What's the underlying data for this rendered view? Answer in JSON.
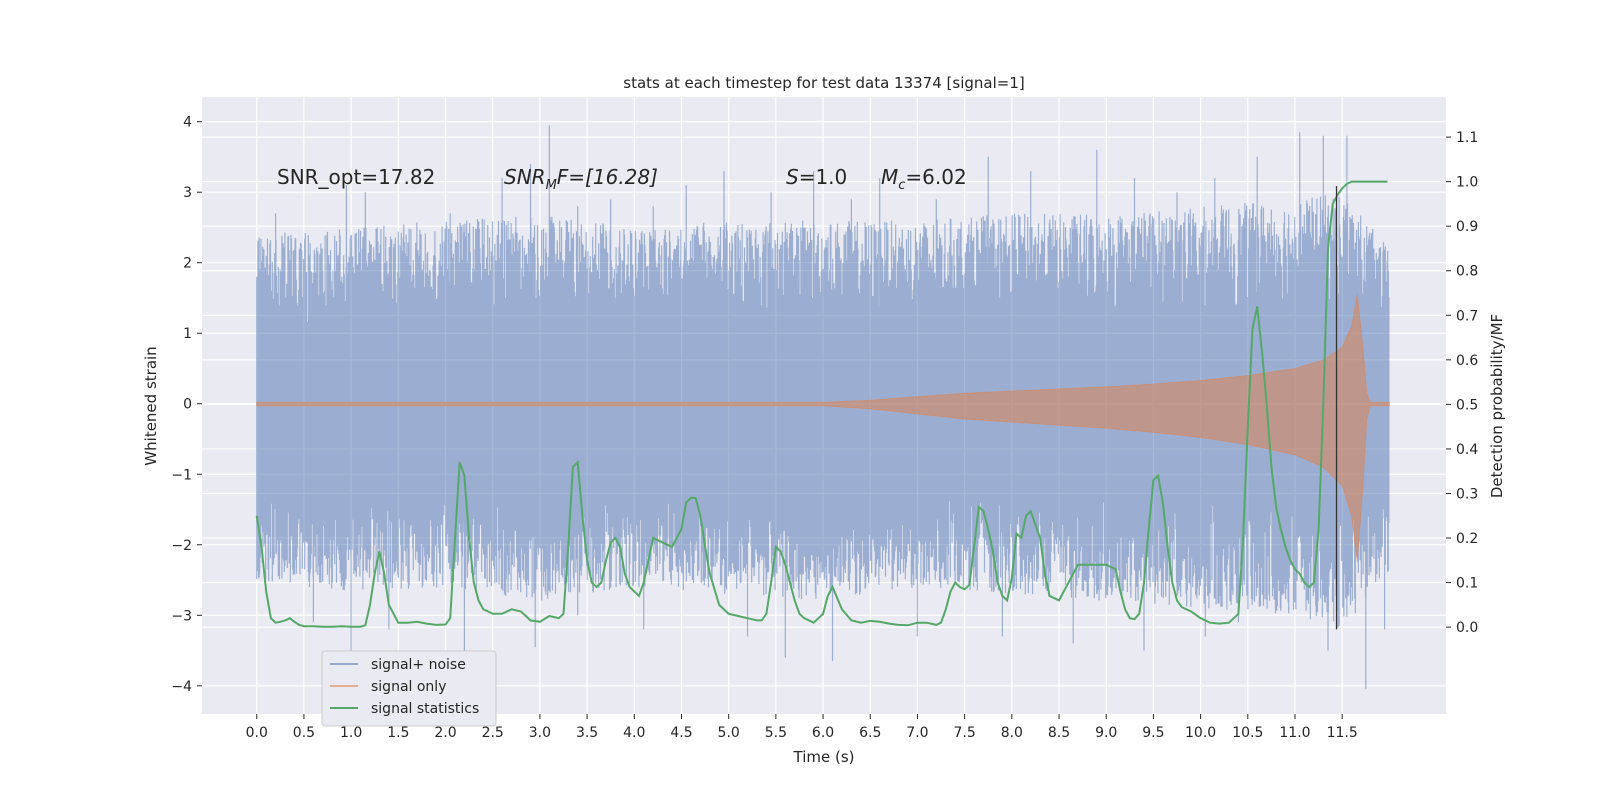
{
  "chart_data": {
    "type": "line",
    "title": "stats at each timestep for test data 13374 [signal=1]",
    "xlabel": "Time (s)",
    "ylabel_left": "Whitened strain",
    "ylabel_right": "Detection probability/MF",
    "x_ticks": [
      "0.0",
      "0.5",
      "1.0",
      "1.5",
      "2.0",
      "2.5",
      "3.0",
      "3.5",
      "4.0",
      "4.5",
      "5.0",
      "5.5",
      "6.0",
      "6.5",
      "7.0",
      "7.5",
      "8.0",
      "8.5",
      "9.0",
      "9.5",
      "10.0",
      "10.5",
      "11.0",
      "11.5"
    ],
    "x_tick_values": [
      0,
      0.5,
      1,
      1.5,
      2,
      2.5,
      3,
      3.5,
      4,
      4.5,
      5,
      5.5,
      6,
      6.5,
      7,
      7.5,
      8,
      8.5,
      9,
      9.5,
      10,
      10.5,
      11,
      11.5
    ],
    "y_left_ticks": [
      "−4",
      "−3",
      "−2",
      "−1",
      "0",
      "1",
      "2",
      "3",
      "4"
    ],
    "y_left_tick_values": [
      -4,
      -3,
      -2,
      -1,
      0,
      1,
      2,
      3,
      4
    ],
    "y_right_ticks": [
      "0.0",
      "0.1",
      "0.2",
      "0.3",
      "0.4",
      "0.5",
      "0.6",
      "0.7",
      "0.8",
      "0.9",
      "1.0",
      "1.1"
    ],
    "y_right_tick_values": [
      0,
      0.1,
      0.2,
      0.3,
      0.4,
      0.5,
      0.6,
      0.7,
      0.8,
      0.9,
      1.0,
      1.1
    ],
    "xlim": [
      -0.58,
      12.6
    ],
    "ylim_left": [
      -4.4,
      4.35
    ],
    "ylim_right": [
      -0.195,
      1.19
    ],
    "grid": true,
    "legend_position": "bottom-left",
    "annotations": {
      "snr_opt": "SNR_opt=17.82",
      "snr_mf_main": "SNR",
      "snr_mf_sub": "M",
      "snr_mf_rest": "F=[16.28]",
      "s_label": "S",
      "s_value": "=1.0",
      "mc_label": "M",
      "mc_sub": "c",
      "mc_value": "=6.02"
    },
    "series": [
      {
        "name": "signal+ noise",
        "color": "#4c72b0",
        "x_range": [
          0,
          12.0
        ],
        "envelope_upper": [
          [
            0,
            2.4
          ],
          [
            1,
            2.5
          ],
          [
            2,
            2.6
          ],
          [
            3,
            2.7
          ],
          [
            4,
            2.5
          ],
          [
            5,
            2.6
          ],
          [
            6,
            2.6
          ],
          [
            7,
            2.6
          ],
          [
            8,
            2.7
          ],
          [
            9,
            2.7
          ],
          [
            10,
            2.8
          ],
          [
            11,
            2.9
          ],
          [
            11.5,
            3.0
          ],
          [
            12,
            2.2
          ]
        ],
        "envelope_lower": [
          [
            0,
            -2.5
          ],
          [
            1,
            -2.7
          ],
          [
            2,
            -2.6
          ],
          [
            3,
            -2.8
          ],
          [
            4,
            -2.6
          ],
          [
            5,
            -2.7
          ],
          [
            6,
            -2.8
          ],
          [
            7,
            -2.6
          ],
          [
            8,
            -2.7
          ],
          [
            9,
            -2.8
          ],
          [
            10,
            -2.9
          ],
          [
            11,
            -3.0
          ],
          [
            11.5,
            -3.2
          ],
          [
            12,
            -2.4
          ]
        ],
        "peaks": [
          [
            0.1,
            2.1
          ],
          [
            0.2,
            2.7
          ],
          [
            0.95,
            3.1
          ],
          [
            1.15,
            3.0
          ],
          [
            2.05,
            2.7
          ],
          [
            2.6,
            3.2
          ],
          [
            2.9,
            3.4
          ],
          [
            3.1,
            3.95
          ],
          [
            3.4,
            2.8
          ],
          [
            3.75,
            2.9
          ],
          [
            4.2,
            2.8
          ],
          [
            4.55,
            3.1
          ],
          [
            4.95,
            3.3
          ],
          [
            5.45,
            3.0
          ],
          [
            5.9,
            3.3
          ],
          [
            6.3,
            2.9
          ],
          [
            6.6,
            3.2
          ],
          [
            7.2,
            2.9
          ],
          [
            7.75,
            3.5
          ],
          [
            8.2,
            3.3
          ],
          [
            8.9,
            3.6
          ],
          [
            9.3,
            3.2
          ],
          [
            9.75,
            3.0
          ],
          [
            10.15,
            3.2
          ],
          [
            10.6,
            3.5
          ],
          [
            11.05,
            3.85
          ],
          [
            11.3,
            3.8
          ],
          [
            11.55,
            3.8
          ],
          [
            0.6,
            -3.1
          ],
          [
            1.0,
            -3.7
          ],
          [
            1.4,
            -3.2
          ],
          [
            2.2,
            -3.6
          ],
          [
            2.95,
            -3.45
          ],
          [
            3.4,
            -3.0
          ],
          [
            4.1,
            -3.2
          ],
          [
            5.2,
            -3.3
          ],
          [
            5.6,
            -3.6
          ],
          [
            6.1,
            -3.65
          ],
          [
            7.0,
            -3.3
          ],
          [
            7.9,
            -3.3
          ],
          [
            8.65,
            -3.4
          ],
          [
            9.4,
            -3.5
          ],
          [
            10.05,
            -3.3
          ],
          [
            10.4,
            -3.1
          ],
          [
            11.35,
            -3.5
          ],
          [
            11.75,
            -4.05
          ],
          [
            11.95,
            -3.2
          ]
        ]
      },
      {
        "name": "signal only",
        "color": "#dd8452",
        "envelope": [
          [
            0,
            0.02
          ],
          [
            6,
            0.02
          ],
          [
            6.5,
            0.05
          ],
          [
            7,
            0.1
          ],
          [
            7.5,
            0.15
          ],
          [
            8,
            0.18
          ],
          [
            8.5,
            0.21
          ],
          [
            9,
            0.24
          ],
          [
            9.5,
            0.28
          ],
          [
            10,
            0.33
          ],
          [
            10.5,
            0.4
          ],
          [
            11,
            0.5
          ],
          [
            11.3,
            0.62
          ],
          [
            11.5,
            0.8
          ],
          [
            11.6,
            1.1
          ],
          [
            11.66,
            1.55
          ],
          [
            11.72,
            0.8
          ],
          [
            11.76,
            0.15
          ],
          [
            11.8,
            0.02
          ],
          [
            12,
            0.02
          ]
        ],
        "lower_scale": 1.45
      },
      {
        "name": "signal statistics",
        "color": "#55a868",
        "x": [
          0,
          0.05,
          0.1,
          0.15,
          0.2,
          0.25,
          0.3,
          0.35,
          0.4,
          0.45,
          0.5,
          0.6,
          0.7,
          0.8,
          0.9,
          1.0,
          1.1,
          1.15,
          1.2,
          1.25,
          1.3,
          1.35,
          1.4,
          1.5,
          1.6,
          1.7,
          1.8,
          1.9,
          2.0,
          2.05,
          2.1,
          2.15,
          2.2,
          2.25,
          2.3,
          2.35,
          2.4,
          2.45,
          2.5,
          2.6,
          2.7,
          2.8,
          2.9,
          3.0,
          3.1,
          3.2,
          3.25,
          3.3,
          3.35,
          3.4,
          3.45,
          3.5,
          3.55,
          3.6,
          3.65,
          3.7,
          3.75,
          3.8,
          3.85,
          3.9,
          3.95,
          4.0,
          4.05,
          4.1,
          4.15,
          4.2,
          4.3,
          4.4,
          4.5,
          4.55,
          4.6,
          4.65,
          4.7,
          4.75,
          4.8,
          4.9,
          5.0,
          5.1,
          5.2,
          5.3,
          5.35,
          5.4,
          5.45,
          5.5,
          5.55,
          5.6,
          5.65,
          5.7,
          5.75,
          5.8,
          5.9,
          6.0,
          6.05,
          6.1,
          6.2,
          6.3,
          6.4,
          6.5,
          6.6,
          6.7,
          6.8,
          6.9,
          7.0,
          7.1,
          7.2,
          7.25,
          7.3,
          7.35,
          7.4,
          7.45,
          7.5,
          7.55,
          7.6,
          7.65,
          7.7,
          7.75,
          7.8,
          7.85,
          7.9,
          7.95,
          8.0,
          8.05,
          8.1,
          8.15,
          8.2,
          8.25,
          8.3,
          8.35,
          8.4,
          8.5,
          8.6,
          8.7,
          8.75,
          8.8,
          8.9,
          9.0,
          9.1,
          9.15,
          9.2,
          9.25,
          9.3,
          9.35,
          9.4,
          9.45,
          9.5,
          9.55,
          9.6,
          9.65,
          9.7,
          9.75,
          9.8,
          9.9,
          10.0,
          10.1,
          10.2,
          10.3,
          10.4,
          10.45,
          10.5,
          10.55,
          10.6,
          10.65,
          10.7,
          10.75,
          10.8,
          10.85,
          10.9,
          10.95,
          11.0,
          11.05,
          11.1,
          11.15,
          11.2,
          11.25,
          11.3,
          11.35,
          11.4,
          11.45,
          11.5,
          11.55,
          11.6,
          11.65,
          11.7,
          11.8,
          11.9,
          11.98
        ],
        "values": [
          0.25,
          0.18,
          0.08,
          0.02,
          0.01,
          0.012,
          0.015,
          0.02,
          0.012,
          0.005,
          0.002,
          0.002,
          0.001,
          0.001,
          0.002,
          0.001,
          0.001,
          0.004,
          0.05,
          0.12,
          0.17,
          0.12,
          0.05,
          0.01,
          0.01,
          0.012,
          0.008,
          0.005,
          0.006,
          0.02,
          0.2,
          0.37,
          0.34,
          0.2,
          0.1,
          0.06,
          0.04,
          0.035,
          0.03,
          0.03,
          0.04,
          0.035,
          0.015,
          0.012,
          0.025,
          0.02,
          0.03,
          0.18,
          0.36,
          0.37,
          0.25,
          0.15,
          0.1,
          0.09,
          0.1,
          0.15,
          0.19,
          0.2,
          0.18,
          0.12,
          0.09,
          0.08,
          0.07,
          0.1,
          0.15,
          0.2,
          0.19,
          0.18,
          0.22,
          0.28,
          0.29,
          0.29,
          0.25,
          0.18,
          0.12,
          0.05,
          0.03,
          0.025,
          0.02,
          0.015,
          0.015,
          0.03,
          0.1,
          0.18,
          0.17,
          0.14,
          0.1,
          0.06,
          0.03,
          0.02,
          0.01,
          0.03,
          0.07,
          0.09,
          0.04,
          0.015,
          0.01,
          0.014,
          0.012,
          0.008,
          0.005,
          0.004,
          0.01,
          0.01,
          0.005,
          0.01,
          0.04,
          0.08,
          0.1,
          0.09,
          0.085,
          0.095,
          0.18,
          0.27,
          0.26,
          0.22,
          0.17,
          0.1,
          0.07,
          0.06,
          0.11,
          0.21,
          0.2,
          0.25,
          0.26,
          0.23,
          0.2,
          0.12,
          0.07,
          0.06,
          0.1,
          0.14,
          0.14,
          0.14,
          0.14,
          0.14,
          0.13,
          0.08,
          0.04,
          0.02,
          0.018,
          0.03,
          0.1,
          0.22,
          0.33,
          0.34,
          0.28,
          0.18,
          0.1,
          0.06,
          0.045,
          0.035,
          0.02,
          0.01,
          0.008,
          0.01,
          0.03,
          0.2,
          0.45,
          0.67,
          0.72,
          0.62,
          0.5,
          0.36,
          0.27,
          0.22,
          0.18,
          0.15,
          0.13,
          0.12,
          0.1,
          0.09,
          0.1,
          0.22,
          0.5,
          0.85,
          0.95,
          0.97,
          0.985,
          0.995,
          1.0,
          1.0,
          1.0,
          1.0,
          1.0,
          1.0
        ]
      }
    ],
    "vertical_marker_x": 11.44
  },
  "legend": {
    "items": [
      {
        "label": "signal+ noise",
        "color": "#4c72b0"
      },
      {
        "label": "signal only",
        "color": "#dd8452"
      },
      {
        "label": "signal statistics",
        "color": "#55a868"
      }
    ]
  }
}
